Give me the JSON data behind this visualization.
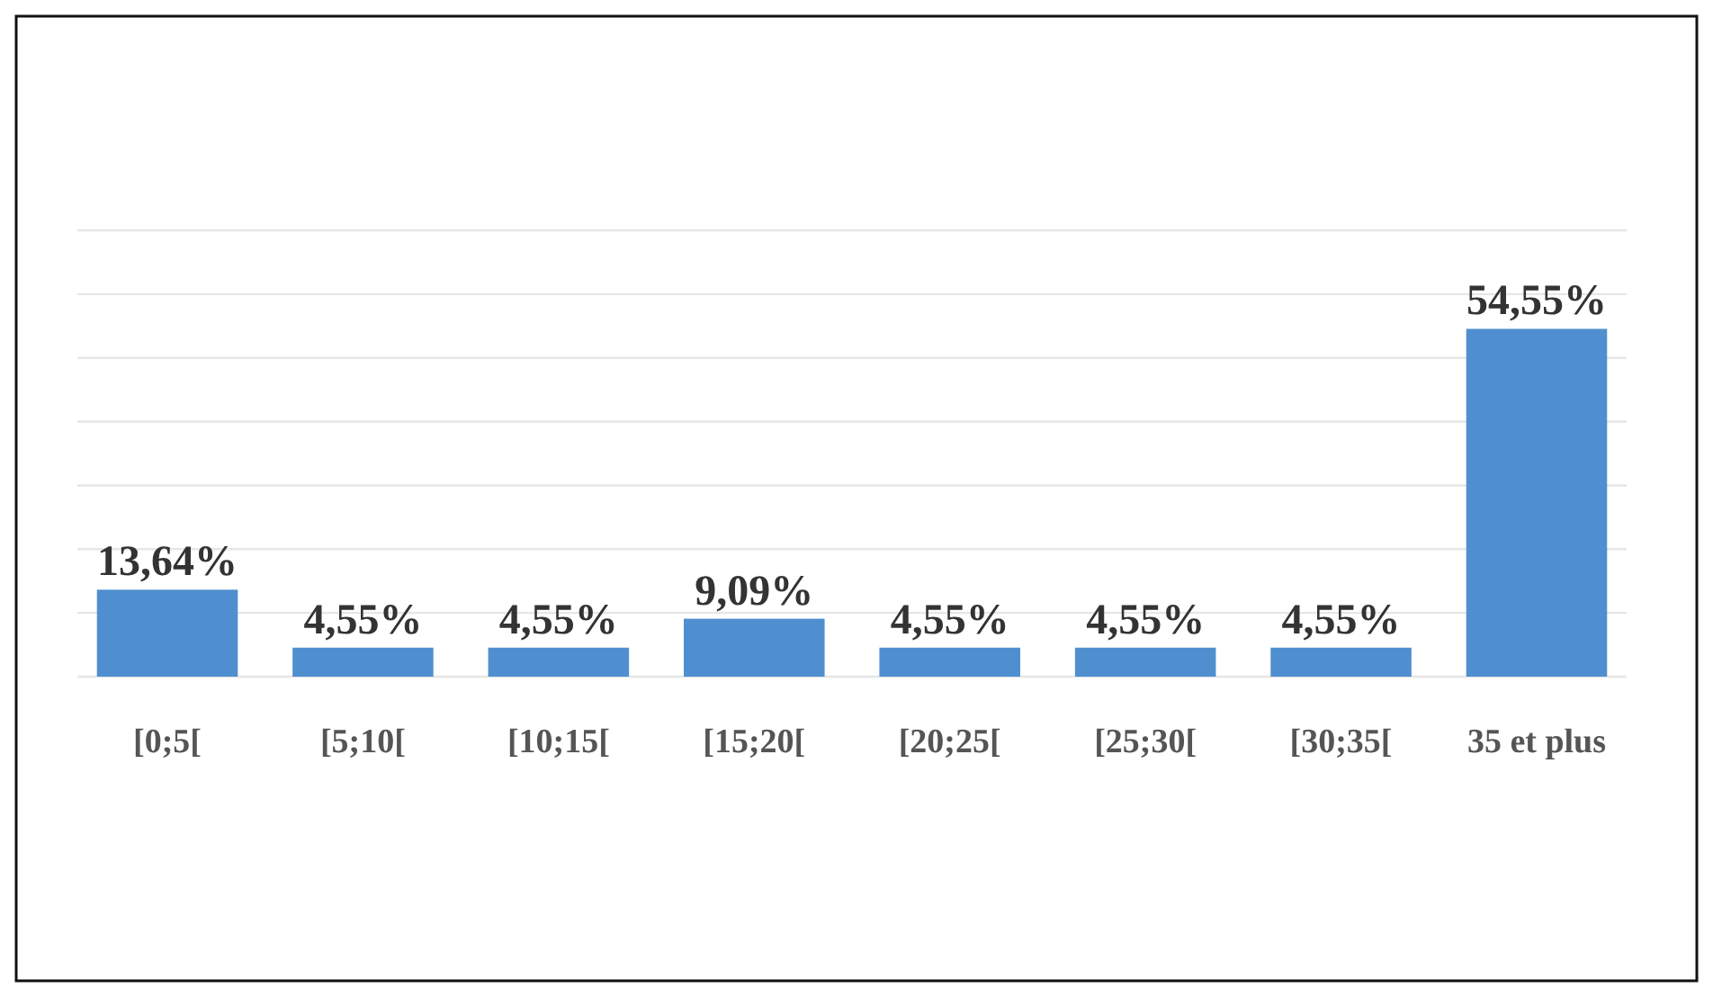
{
  "chart_data": {
    "type": "bar",
    "categories": [
      "[0;5[",
      "[5;10[",
      "[10;15[",
      "[15;20[",
      "[20;25[",
      "[25;30[",
      "[30;35[",
      "35 et plus"
    ],
    "values": [
      13.64,
      4.55,
      4.55,
      9.09,
      4.55,
      4.55,
      4.55,
      54.55
    ],
    "value_labels": [
      "13,64%",
      "4,55%",
      "4,55%",
      "9,09%",
      "4,55%",
      "4,55%",
      "4,55%",
      "54,55%"
    ],
    "color": "#4f8fd0",
    "ylim": [
      0,
      70
    ],
    "yticks": [
      {
        "value": 0,
        "label": null
      },
      {
        "value": 10,
        "label": null
      },
      {
        "value": 20,
        "label": null
      },
      {
        "value": 30,
        "label": null
      },
      {
        "value": 40,
        "label": null
      },
      {
        "value": 50,
        "label": null
      },
      {
        "value": 60,
        "label": null
      },
      {
        "value": 70,
        "label": null
      }
    ],
    "grid": "y",
    "tick_labels": "x"
  }
}
